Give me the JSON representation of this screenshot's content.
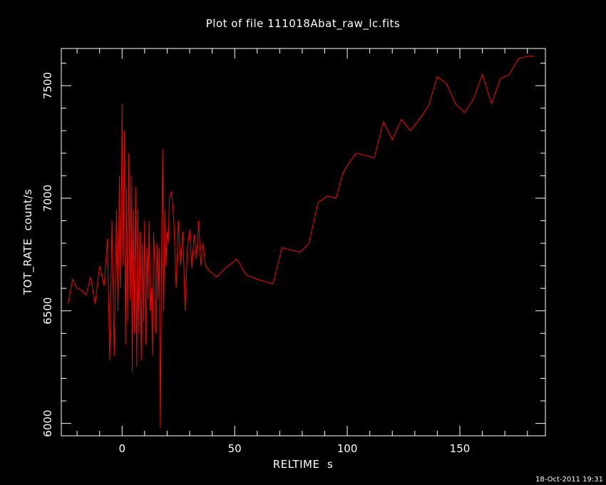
{
  "chart_data": {
    "type": "line",
    "title": "Plot of file 111018Abat_raw_lc.fits",
    "xlabel": "RELTIME  s",
    "ylabel": "TOT_RATE  count/s",
    "xlim": [
      -27,
      188
    ],
    "ylim": [
      5945,
      7665
    ],
    "xticks": [
      0,
      50,
      100,
      150
    ],
    "yticks": [
      6000,
      6500,
      7000,
      7500
    ],
    "xticks_minor_step": 10,
    "yticks_minor_step": 100,
    "line_color": "#ff0000",
    "grid": false,
    "series": [
      {
        "x": [
          -24,
          -22,
          -20,
          -18,
          -16,
          -14,
          -12,
          -10,
          -8,
          -6.5,
          -5.5,
          -4.5,
          -3.5,
          -2.5,
          -1.8,
          -1.2,
          -0.6,
          0,
          0.5,
          1.0,
          1.5,
          2.0,
          2.5,
          3.0,
          3.5,
          4.0,
          4.5,
          5.0,
          5.5,
          6.0,
          6.5,
          7.0,
          7.5,
          8.0,
          8.5,
          9.0,
          9.5,
          10.0,
          10.5,
          11.0,
          11.5,
          12.0,
          12.5,
          13.0,
          13.5,
          14.0,
          14.5,
          15.0,
          15.5,
          16.0,
          16.5,
          17.0,
          17.5,
          18.0,
          18.5,
          19.0,
          19.5,
          20.0,
          20.5,
          21.0,
          22.0,
          23.0,
          24.0,
          25.0,
          26.0,
          27.0,
          28.0,
          29.0,
          30.0,
          31.0,
          32.0,
          33.0,
          34.0,
          35.0,
          36.0,
          37.0,
          38.5,
          42,
          46,
          51,
          55,
          60,
          67,
          71,
          75,
          79,
          83,
          87,
          91,
          95,
          98,
          101,
          104,
          108,
          112,
          116,
          120,
          124,
          128,
          132,
          136,
          140,
          144,
          148,
          152,
          156,
          160,
          164,
          168,
          172,
          176,
          180,
          183
        ],
        "y": [
          6530,
          6640,
          6600,
          6590,
          6570,
          6650,
          6530,
          6700,
          6610,
          6820,
          6280,
          6900,
          6300,
          6950,
          6500,
          7100,
          6600,
          7420,
          6700,
          7300,
          6350,
          7050,
          6450,
          7200,
          6550,
          7100,
          6230,
          6950,
          6400,
          7050,
          6250,
          6950,
          6400,
          6850,
          6280,
          6800,
          6450,
          6900,
          6350,
          6780,
          6550,
          6900,
          6500,
          6600,
          6300,
          6850,
          6700,
          6400,
          6800,
          6550,
          6780,
          5980,
          6700,
          7220,
          6500,
          6950,
          6700,
          6850,
          6800,
          7000,
          7030,
          6900,
          6600,
          6900,
          6700,
          6850,
          6500,
          6780,
          6860,
          6690,
          6840,
          6730,
          6900,
          6700,
          6800,
          6700,
          6680,
          6650,
          6690,
          6730,
          6660,
          6640,
          6620,
          6780,
          6770,
          6760,
          6800,
          6980,
          7010,
          7000,
          7110,
          7160,
          7200,
          7190,
          7180,
          7340,
          7260,
          7350,
          7300,
          7350,
          7410,
          7540,
          7510,
          7420,
          7380,
          7440,
          7550,
          7420,
          7530,
          7550,
          7620,
          7630,
          7630
        ]
      }
    ]
  },
  "footer": {
    "timestamp": "18-Oct-2011 19:31"
  }
}
